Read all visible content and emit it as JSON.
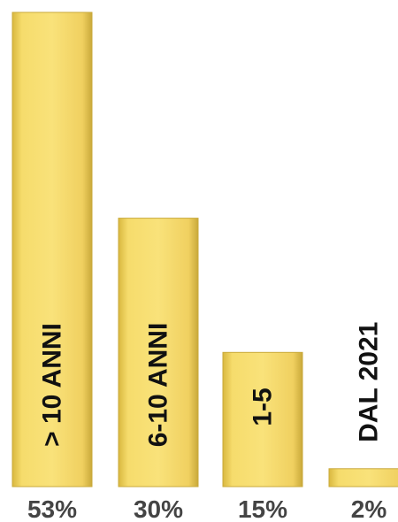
{
  "chart_data": {
    "type": "bar",
    "categories": [
      "> 10 ANNI",
      "6-10 ANNI",
      "1-5",
      "DAL 2021"
    ],
    "values": [
      53,
      30,
      15,
      2
    ],
    "value_labels": [
      "53%",
      "30%",
      "15%",
      "2%"
    ],
    "ylim": [
      0,
      53
    ],
    "grid": false,
    "legend": "none",
    "bar_color": "#F4D55B",
    "bar_edge_color": "#C9A93A",
    "label_color": "#111111",
    "value_label_color": "#444444"
  }
}
